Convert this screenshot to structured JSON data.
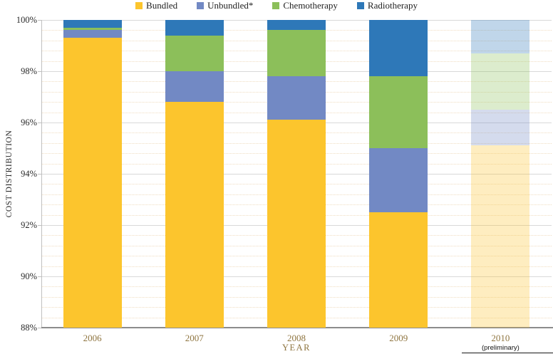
{
  "chart_data": {
    "type": "bar",
    "stacked": true,
    "categories": [
      "2006",
      "2007",
      "2008",
      "2009",
      "2010"
    ],
    "category_notes": [
      "",
      "",
      "",
      "",
      "(preliminary)"
    ],
    "preliminary_index": 4,
    "series": [
      {
        "name": "Bundled",
        "color": "#fcc52d",
        "values": [
          99.3,
          96.8,
          96.1,
          92.5,
          95.1
        ]
      },
      {
        "name": "Unbundled*",
        "color": "#7289c4",
        "values": [
          0.3,
          1.2,
          1.7,
          2.5,
          1.4
        ]
      },
      {
        "name": "Chemotherapy",
        "color": "#8cbf5a",
        "values": [
          0.1,
          1.4,
          1.8,
          2.8,
          2.2
        ]
      },
      {
        "name": "Radiotherapy",
        "color": "#2e78b8",
        "values": [
          0.3,
          0.6,
          0.4,
          2.2,
          1.3
        ]
      }
    ],
    "xlabel": "YEAR",
    "ylabel": "COST DISTRIBUTION",
    "ylim": [
      88,
      100
    ],
    "ytick_labels": [
      "88%",
      "90%",
      "92%",
      "94%",
      "96%",
      "98%",
      "100%"
    ],
    "ytick_step_major": 2,
    "ytick_step_minor": 0.4,
    "legend_position": "top",
    "grid": true,
    "preliminary_bar_opacity": 0.3,
    "axis_text_colors": {
      "x_tick_labels": "#8f7540",
      "y_tick_labels": "#2b2b2b",
      "note": "#111111"
    }
  }
}
